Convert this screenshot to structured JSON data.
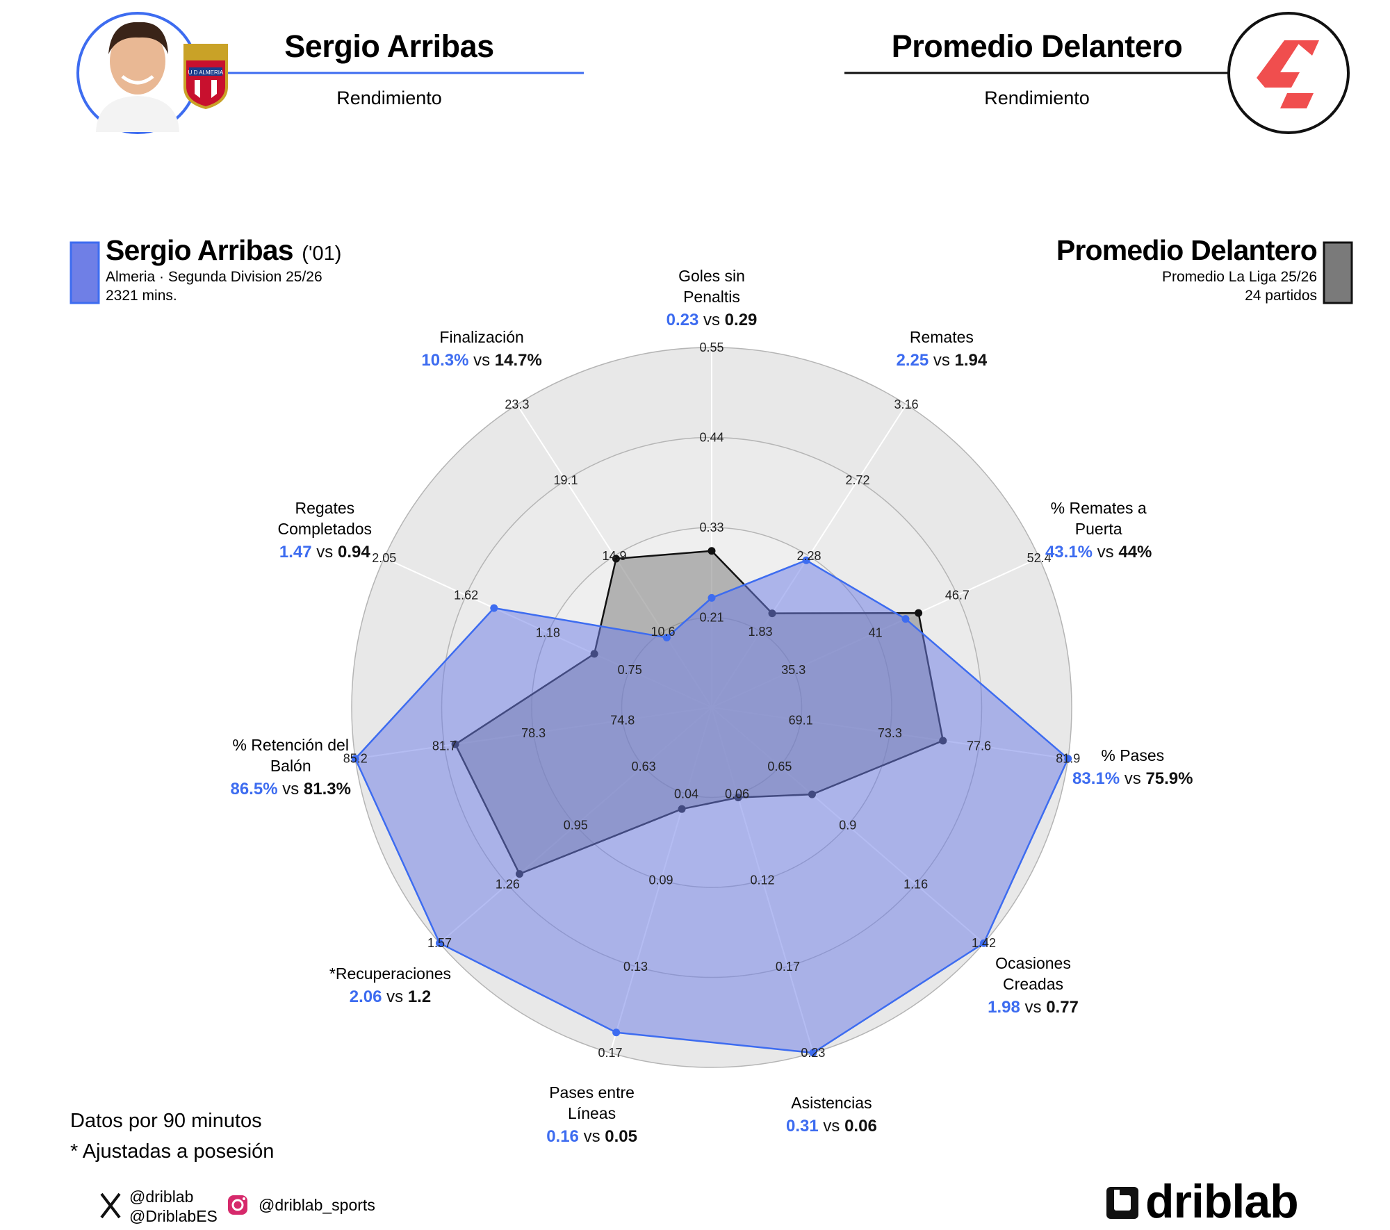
{
  "header": {
    "player_name": "Sergio Arribas",
    "player_subtitle": "Rendimiento",
    "compare_name": "Promedio Delantero",
    "compare_subtitle": "Rendimiento",
    "club_crest_text": "U D ALMERIA"
  },
  "legend": {
    "player": {
      "name": "Sergio Arribas",
      "age": "('01)",
      "line1": "Almeria · Segunda Division 25/26",
      "line2": "2321 mins.",
      "color": "#6f7fe6"
    },
    "compare": {
      "name": "Promedio Delantero",
      "line1": "Promedio La Liga 25/26",
      "line2": "24 partidos",
      "color": "#7a7a7a"
    }
  },
  "colors": {
    "player_accent": "#3d6cf0",
    "player_fill": "#6f7fe6",
    "compare_line": "#111111",
    "compare_fill": "#808080",
    "header_line_player": "#3d6cf0",
    "header_line_compare": "#111111",
    "laliga_logo": "#f04e4e"
  },
  "chart_data": {
    "type": "radar",
    "series": [
      {
        "name": "Sergio Arribas"
      },
      {
        "name": "Promedio Delantero"
      }
    ],
    "axes": [
      {
        "label_lines": [
          "Goles sin",
          "Penaltis"
        ],
        "player_display": "0.23",
        "compare_display": "0.29",
        "player": 0.23,
        "compare": 0.29,
        "ticks": [
          "0.21",
          "0.33",
          "0.44",
          "0.55"
        ],
        "range": [
          0.09,
          0.55
        ]
      },
      {
        "label_lines": [
          "Remates"
        ],
        "player_display": "2.25",
        "compare_display": "1.94",
        "player": 2.25,
        "compare": 1.94,
        "ticks": [
          "1.83",
          "2.28",
          "2.72",
          "3.16"
        ],
        "range": [
          1.39,
          3.16
        ]
      },
      {
        "label_lines": [
          "% Remates a",
          "Puerta"
        ],
        "player_display": "43.1%",
        "compare_display": "44%",
        "player": 43.1,
        "compare": 44.0,
        "ticks": [
          "35.3",
          "41",
          "46.7",
          "52.4"
        ],
        "range": [
          29.6,
          52.4
        ]
      },
      {
        "label_lines": [
          "% Pases"
        ],
        "player_display": "83.1%",
        "compare_display": "75.9%",
        "player": 83.1,
        "compare": 75.9,
        "ticks": [
          "69.1",
          "73.3",
          "77.6",
          "81.9"
        ],
        "range": [
          64.8,
          81.9
        ]
      },
      {
        "label_lines": [
          "Ocasiones",
          "Creadas"
        ],
        "player_display": "1.98",
        "compare_display": "0.77",
        "player": 1.98,
        "compare": 0.77,
        "ticks": [
          "0.65",
          "0.9",
          "1.16",
          "1.42"
        ],
        "range": [
          0.39,
          1.42
        ]
      },
      {
        "label_lines": [
          "Asistencias"
        ],
        "player_display": "0.31",
        "compare_display": "0.06",
        "player": 0.31,
        "compare": 0.06,
        "ticks": [
          "0.06",
          "0.12",
          "0.17",
          "0.23"
        ],
        "range": [
          0.0,
          0.23
        ]
      },
      {
        "label_lines": [
          "Pases entre",
          "Líneas"
        ],
        "player_display": "0.16",
        "compare_display": "0.05",
        "player": 0.16,
        "compare": 0.05,
        "ticks": [
          "0.04",
          "0.09",
          "0.13",
          "0.17"
        ],
        "range": [
          0.0,
          0.17
        ]
      },
      {
        "label_lines": [
          "*Recuperaciones"
        ],
        "player_display": "2.06",
        "compare_display": "1.2",
        "player": 2.06,
        "compare": 1.2,
        "ticks": [
          "0.63",
          "0.95",
          "1.26",
          "1.57"
        ],
        "range": [
          0.31,
          1.57
        ]
      },
      {
        "label_lines": [
          "% Retención del",
          "Balón"
        ],
        "player_display": "86.5%",
        "compare_display": "81.3%",
        "player": 86.5,
        "compare": 81.3,
        "ticks": [
          "74.8",
          "78.3",
          "81.7",
          "85.2"
        ],
        "range": [
          71.3,
          85.2
        ]
      },
      {
        "label_lines": [
          "Regates",
          "Completados"
        ],
        "player_display": "1.47",
        "compare_display": "0.94",
        "player": 1.47,
        "compare": 0.94,
        "ticks": [
          "0.75",
          "1.18",
          "1.62",
          "2.05"
        ],
        "range": [
          0.32,
          2.05
        ]
      },
      {
        "label_lines": [
          "Finalización"
        ],
        "player_display": "10.3%",
        "compare_display": "14.7%",
        "player": 10.3,
        "compare": 14.7,
        "ticks": [
          "10.6",
          "14.9",
          "19.1",
          "23.3"
        ],
        "range": [
          6.4,
          23.3
        ]
      }
    ],
    "vs_word": "vs",
    "grid": true
  },
  "footer": {
    "note1": "Datos por 90 minutos",
    "note2": "* Ajustadas a posesión",
    "x_handle1": "@driblab",
    "x_handle2": "@DriblabES",
    "ig_handle": "@driblab_sports",
    "brand": "driblab"
  }
}
